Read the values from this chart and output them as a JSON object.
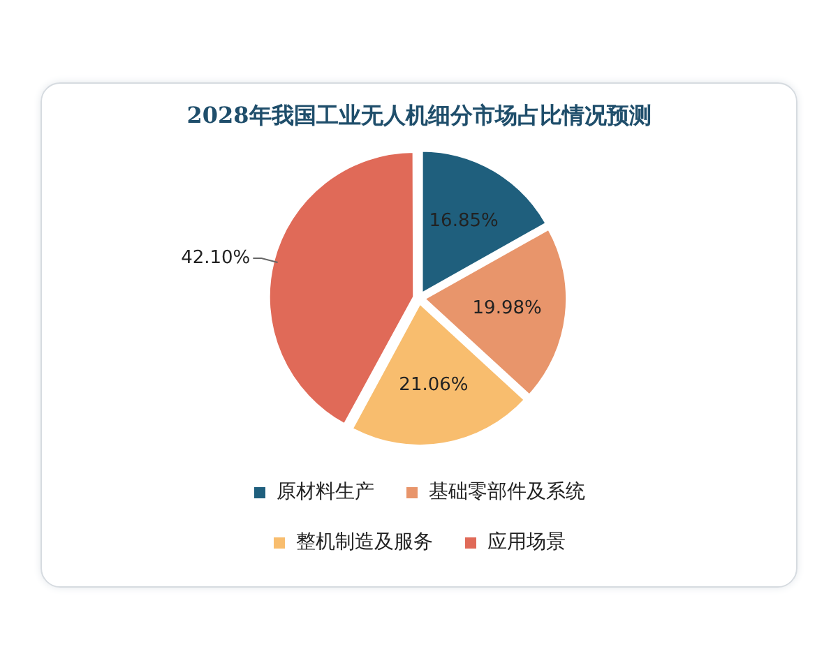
{
  "chart_data": {
    "type": "pie",
    "title": "2028年我国工业无人机细分市场占比情况预测",
    "categories": [
      "原材料生产",
      "基础零部件及系统",
      "整机制造及服务",
      "应用场景"
    ],
    "values": [
      16.85,
      19.98,
      21.06,
      42.1
    ],
    "colors": [
      "#1f5f7d",
      "#e8956b",
      "#f8bd6e",
      "#e06a58"
    ],
    "value_labels": [
      "16.85%",
      "19.98%",
      "21.06%",
      "42.10%"
    ],
    "legend": "bottom"
  }
}
